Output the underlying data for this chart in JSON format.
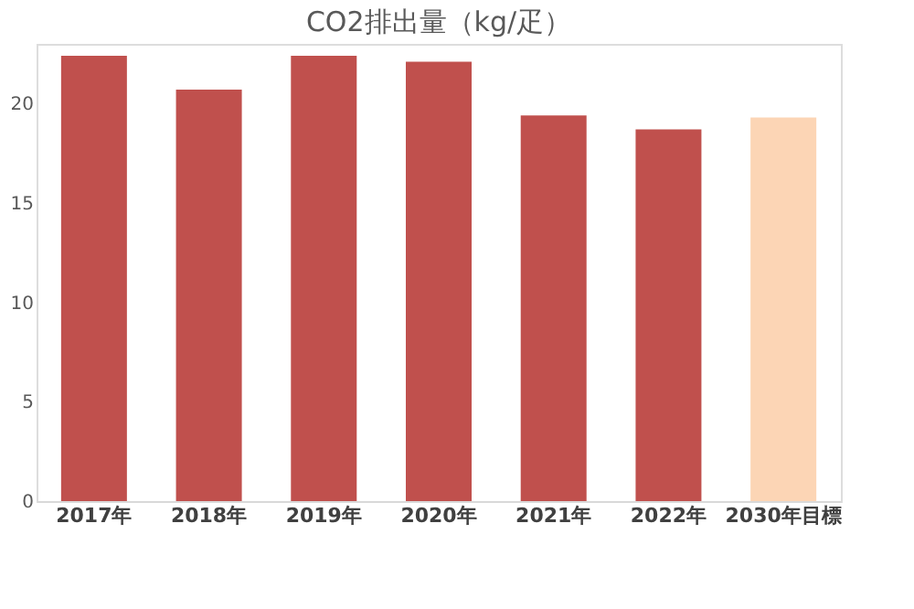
{
  "chart_data": {
    "type": "bar",
    "title": "CO2排出量（kg/疋）",
    "categories": [
      "2017年",
      "2018年",
      "2019年",
      "2020年",
      "2021年",
      "2022年",
      "2030年目標"
    ],
    "values": [
      22.4,
      20.7,
      22.4,
      22.1,
      19.4,
      18.7,
      19.3
    ],
    "colors": [
      "#c0504d",
      "#c0504d",
      "#c0504d",
      "#c0504d",
      "#c0504d",
      "#c0504d",
      "#fcd5b5"
    ],
    "ylim": [
      0,
      23
    ],
    "yticks": [
      0,
      5,
      10,
      15,
      20
    ],
    "grid": false
  }
}
